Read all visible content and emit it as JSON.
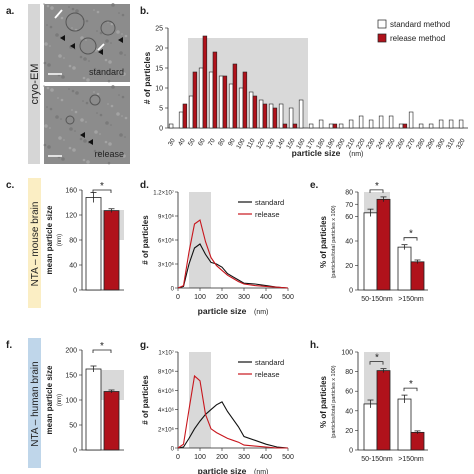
{
  "panels": {
    "a": {
      "letter": "a.",
      "side_label": "cryo-EM",
      "top_label": "standard",
      "bottom_label": "release"
    },
    "b": {
      "letter": "b.",
      "ylabel": "# of particles",
      "xlabel": "particle size",
      "xunit": "(nm)",
      "yticks": [
        "0",
        "5",
        "10",
        "15",
        "20",
        "25"
      ],
      "xticks": [
        "30",
        "40",
        "50",
        "60",
        "70",
        "80",
        "90",
        "100",
        "110",
        "120",
        "130",
        "140",
        "150",
        "160",
        "170",
        "180",
        "190",
        "200",
        "210",
        "220",
        "230",
        "240",
        "250",
        "260",
        "270",
        "280",
        "290",
        "300",
        "310",
        "320"
      ],
      "legend": [
        "standard method",
        "release method"
      ]
    },
    "c": {
      "letter": "c.",
      "side_label": "NTA – mouse brain",
      "ylabel": "mean particle size",
      "yunit": "(nm)",
      "yticks": [
        "0",
        "40",
        "80",
        "120",
        "160"
      ],
      "star": "*"
    },
    "d": {
      "letter": "d.",
      "ylabel": "# of particles",
      "xlabel": "particle size",
      "xunit": "(nm)",
      "yticks": [
        "0",
        "3×10⁶",
        "6×10⁶",
        "9×10⁶",
        "1.2×10⁷"
      ],
      "xticks": [
        "0",
        "100",
        "200",
        "300",
        "400",
        "500"
      ],
      "legend": [
        "standard",
        "release"
      ]
    },
    "e": {
      "letter": "e.",
      "ylabel": "% of particles",
      "ysub": "(particles/total particles x 100)",
      "yticks": [
        "0",
        "20",
        "40",
        "60",
        "70",
        "80"
      ],
      "xcats": [
        "50-150nm",
        ">150nm"
      ],
      "stars": [
        "*",
        "*"
      ]
    },
    "f": {
      "letter": "f.",
      "side_label": "NTA – human brain",
      "ylabel": "mean particle size",
      "yunit": "(nm)",
      "yticks": [
        "0",
        "50",
        "100",
        "150",
        "200"
      ],
      "star": "*"
    },
    "g": {
      "letter": "g.",
      "ylabel": "# of particles",
      "xlabel": "particle size",
      "xunit": "(nm)",
      "yticks": [
        "0",
        "2×10⁶",
        "4×10⁶",
        "6×10⁶",
        "8×10⁶",
        "1×10⁷"
      ],
      "xticks": [
        "0",
        "100",
        "200",
        "300",
        "400",
        "500"
      ],
      "legend": [
        "standard",
        "release"
      ]
    },
    "h": {
      "letter": "h.",
      "ylabel": "% of particles",
      "ysub": "(particles/total particles x 100)",
      "yticks": [
        "0",
        "20",
        "40",
        "60",
        "80",
        "100"
      ],
      "xcats": [
        "50-150nm",
        ">150nm"
      ],
      "stars": [
        "*",
        "*"
      ]
    }
  },
  "colors": {
    "standard": "#ffffff",
    "release": "#b0121b",
    "shade": "#d9d9d9",
    "side_a": "#d6d6d6",
    "side_mouse": "#fbeec4",
    "side_human": "#bfd6ea"
  },
  "chart_data": [
    {
      "panel": "b",
      "type": "bar",
      "categories": [
        "30",
        "40",
        "50",
        "60",
        "70",
        "80",
        "90",
        "100",
        "110",
        "120",
        "130",
        "140",
        "150",
        "160",
        "170",
        "180",
        "190",
        "200",
        "210",
        "220",
        "230",
        "240",
        "250",
        "260",
        "270",
        "280",
        "290",
        "300",
        "310",
        "320"
      ],
      "series": [
        {
          "name": "standard method",
          "values": [
            1,
            4,
            8,
            15,
            14,
            13,
            11,
            10,
            9,
            7,
            6,
            6,
            5,
            7,
            1,
            2,
            1,
            1,
            2,
            3,
            2,
            3,
            3,
            1,
            4,
            1,
            1,
            2,
            2,
            2
          ]
        },
        {
          "name": "release method",
          "values": [
            0,
            6,
            14,
            23,
            19,
            13,
            16,
            14,
            8,
            6,
            5,
            1,
            1,
            0,
            0,
            0,
            1,
            0,
            0,
            0,
            0,
            0,
            0,
            1,
            0,
            0,
            0,
            0,
            0,
            0
          ]
        }
      ],
      "ylim": [
        0,
        25
      ],
      "shaded_range": [
        "50",
        "160"
      ]
    },
    {
      "panel": "c",
      "type": "bar",
      "categories": [
        "standard",
        "release"
      ],
      "values": [
        148,
        127
      ],
      "errors": [
        8,
        3
      ],
      "ylim": [
        0,
        160
      ]
    },
    {
      "panel": "d",
      "type": "line",
      "x": [
        0,
        25,
        50,
        75,
        100,
        125,
        150,
        175,
        200,
        225,
        250,
        275,
        300,
        350,
        400,
        450,
        500
      ],
      "series": [
        {
          "name": "standard",
          "values": [
            0,
            0.2,
            3.0,
            5.0,
            5.5,
            4.2,
            3.2,
            3.0,
            2.6,
            1.8,
            1.4,
            1.0,
            0.6,
            0.5,
            0.3,
            0.1,
            0
          ]
        },
        {
          "name": "release",
          "values": [
            0,
            0.3,
            4.5,
            8.0,
            8.5,
            5.8,
            3.8,
            2.8,
            2.2,
            1.6,
            1.2,
            0.8,
            0.5,
            0.3,
            0.2,
            0.1,
            0
          ]
        }
      ],
      "ylim": [
        0,
        12
      ],
      "yunit": "1e6",
      "shaded_range": [
        50,
        150
      ]
    },
    {
      "panel": "e",
      "type": "bar",
      "categories": [
        "50-150nm",
        ">150nm"
      ],
      "series": [
        {
          "name": "standard",
          "values": [
            63,
            35
          ],
          "errors": [
            3,
            2
          ]
        },
        {
          "name": "release",
          "values": [
            74,
            23
          ],
          "errors": [
            2,
            1.5
          ]
        }
      ],
      "ylim": [
        0,
        80
      ]
    },
    {
      "panel": "f",
      "type": "bar",
      "categories": [
        "standard",
        "release"
      ],
      "values": [
        162,
        117
      ],
      "errors": [
        6,
        3
      ],
      "ylim": [
        0,
        200
      ]
    },
    {
      "panel": "g",
      "type": "line",
      "x": [
        0,
        25,
        50,
        75,
        100,
        125,
        150,
        175,
        200,
        225,
        250,
        275,
        300,
        350,
        400,
        450,
        500
      ],
      "series": [
        {
          "name": "standard",
          "values": [
            0,
            0.1,
            1.0,
            2.0,
            2.8,
            3.5,
            4.0,
            4.5,
            4.8,
            3.8,
            3.0,
            2.2,
            1.2,
            0.8,
            0.4,
            0.1,
            0
          ]
        },
        {
          "name": "release",
          "values": [
            0,
            0.4,
            4.0,
            7.5,
            7.0,
            3.5,
            2.0,
            1.6,
            1.3,
            1.0,
            0.8,
            0.6,
            0.3,
            0.2,
            0.1,
            0,
            0
          ]
        }
      ],
      "ylim": [
        0,
        10
      ],
      "yunit": "1e6",
      "shaded_range": [
        50,
        150
      ]
    },
    {
      "panel": "h",
      "type": "bar",
      "categories": [
        "50-150nm",
        ">150nm"
      ],
      "series": [
        {
          "name": "standard",
          "values": [
            47,
            52
          ],
          "errors": [
            4,
            4
          ]
        },
        {
          "name": "release",
          "values": [
            81,
            18
          ],
          "errors": [
            2,
            1.5
          ]
        }
      ],
      "ylim": [
        0,
        100
      ]
    }
  ]
}
